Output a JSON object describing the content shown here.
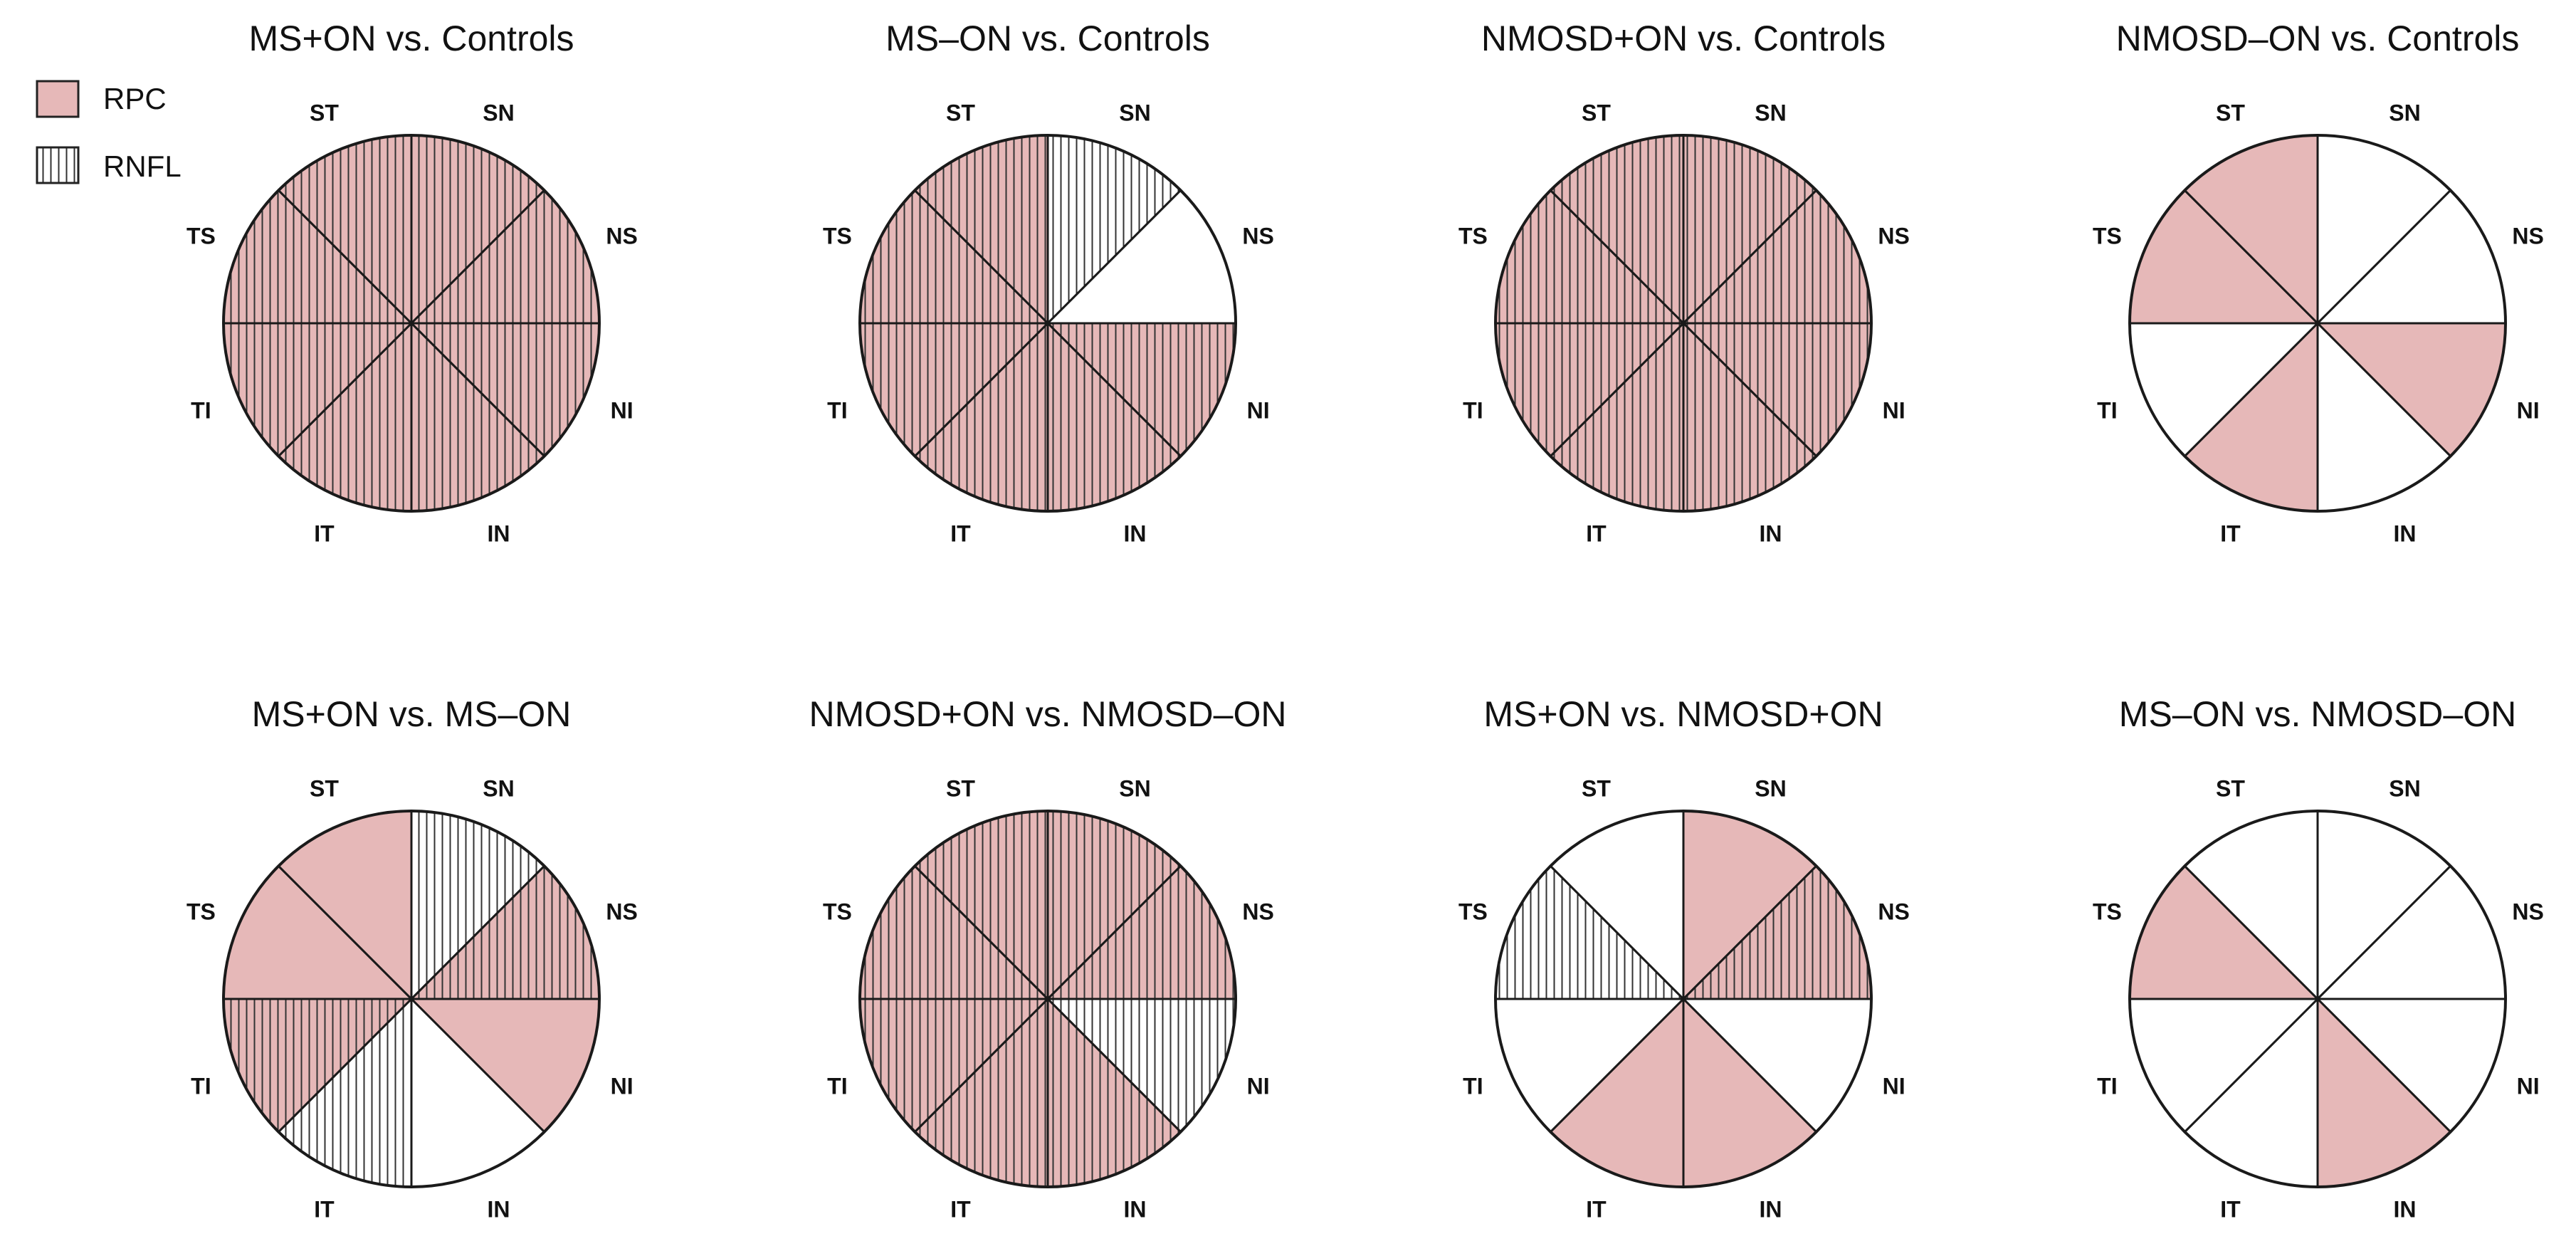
{
  "legend": {
    "items": [
      {
        "key": "rpc",
        "label": "RPC",
        "color": "#e6b8b8"
      },
      {
        "key": "rnfl",
        "label": "RNFL",
        "pattern": "vertical-hatch"
      }
    ]
  },
  "sector_order": [
    "SN",
    "NS",
    "NI",
    "IN",
    "IT",
    "TI",
    "TS",
    "ST"
  ],
  "panels": [
    {
      "title": "MS+ON vs. Controls",
      "sectors": {
        "SN": [
          "rpc",
          "rnfl"
        ],
        "NS": [
          "rpc",
          "rnfl"
        ],
        "NI": [
          "rpc",
          "rnfl"
        ],
        "IN": [
          "rpc",
          "rnfl"
        ],
        "IT": [
          "rpc",
          "rnfl"
        ],
        "TI": [
          "rpc",
          "rnfl"
        ],
        "TS": [
          "rpc",
          "rnfl"
        ],
        "ST": [
          "rpc",
          "rnfl"
        ]
      }
    },
    {
      "title": "MS–ON vs. Controls",
      "sectors": {
        "SN": [
          "rnfl"
        ],
        "NS": [],
        "NI": [
          "rpc",
          "rnfl"
        ],
        "IN": [
          "rpc",
          "rnfl"
        ],
        "IT": [
          "rpc",
          "rnfl"
        ],
        "TI": [
          "rpc",
          "rnfl"
        ],
        "TS": [
          "rpc",
          "rnfl"
        ],
        "ST": [
          "rpc",
          "rnfl"
        ]
      }
    },
    {
      "title": "NMOSD+ON vs. Controls",
      "sectors": {
        "SN": [
          "rpc",
          "rnfl"
        ],
        "NS": [
          "rpc",
          "rnfl"
        ],
        "NI": [
          "rpc",
          "rnfl"
        ],
        "IN": [
          "rpc",
          "rnfl"
        ],
        "IT": [
          "rpc",
          "rnfl"
        ],
        "TI": [
          "rpc",
          "rnfl"
        ],
        "TS": [
          "rpc",
          "rnfl"
        ],
        "ST": [
          "rpc",
          "rnfl"
        ]
      }
    },
    {
      "title": "NMOSD–ON vs. Controls",
      "sectors": {
        "SN": [],
        "NS": [],
        "NI": [
          "rpc"
        ],
        "IN": [],
        "IT": [
          "rpc"
        ],
        "TI": [],
        "TS": [
          "rpc"
        ],
        "ST": [
          "rpc"
        ]
      }
    },
    {
      "title": "MS+ON vs. MS–ON",
      "sectors": {
        "SN": [
          "rnfl"
        ],
        "NS": [
          "rpc",
          "rnfl"
        ],
        "NI": [
          "rpc"
        ],
        "IN": [],
        "IT": [
          "rnfl"
        ],
        "TI": [
          "rpc",
          "rnfl"
        ],
        "TS": [
          "rpc"
        ],
        "ST": [
          "rpc"
        ]
      }
    },
    {
      "title": "NMOSD+ON vs. NMOSD–ON",
      "sectors": {
        "SN": [
          "rpc",
          "rnfl"
        ],
        "NS": [
          "rpc",
          "rnfl"
        ],
        "NI": [
          "rnfl"
        ],
        "IN": [
          "rpc",
          "rnfl"
        ],
        "IT": [
          "rpc",
          "rnfl"
        ],
        "TI": [
          "rpc",
          "rnfl"
        ],
        "TS": [
          "rpc",
          "rnfl"
        ],
        "ST": [
          "rpc",
          "rnfl"
        ]
      }
    },
    {
      "title": "MS+ON vs. NMOSD+ON",
      "sectors": {
        "SN": [
          "rpc"
        ],
        "NS": [
          "rpc",
          "rnfl"
        ],
        "NI": [],
        "IN": [
          "rpc"
        ],
        "IT": [
          "rpc"
        ],
        "TI": [],
        "TS": [
          "rnfl"
        ],
        "ST": []
      }
    },
    {
      "title": "MS–ON vs. NMOSD–ON",
      "sectors": {
        "SN": [],
        "NS": [],
        "NI": [],
        "IN": [
          "rpc"
        ],
        "IT": [],
        "TI": [],
        "TS": [
          "rpc"
        ],
        "ST": []
      }
    }
  ]
}
